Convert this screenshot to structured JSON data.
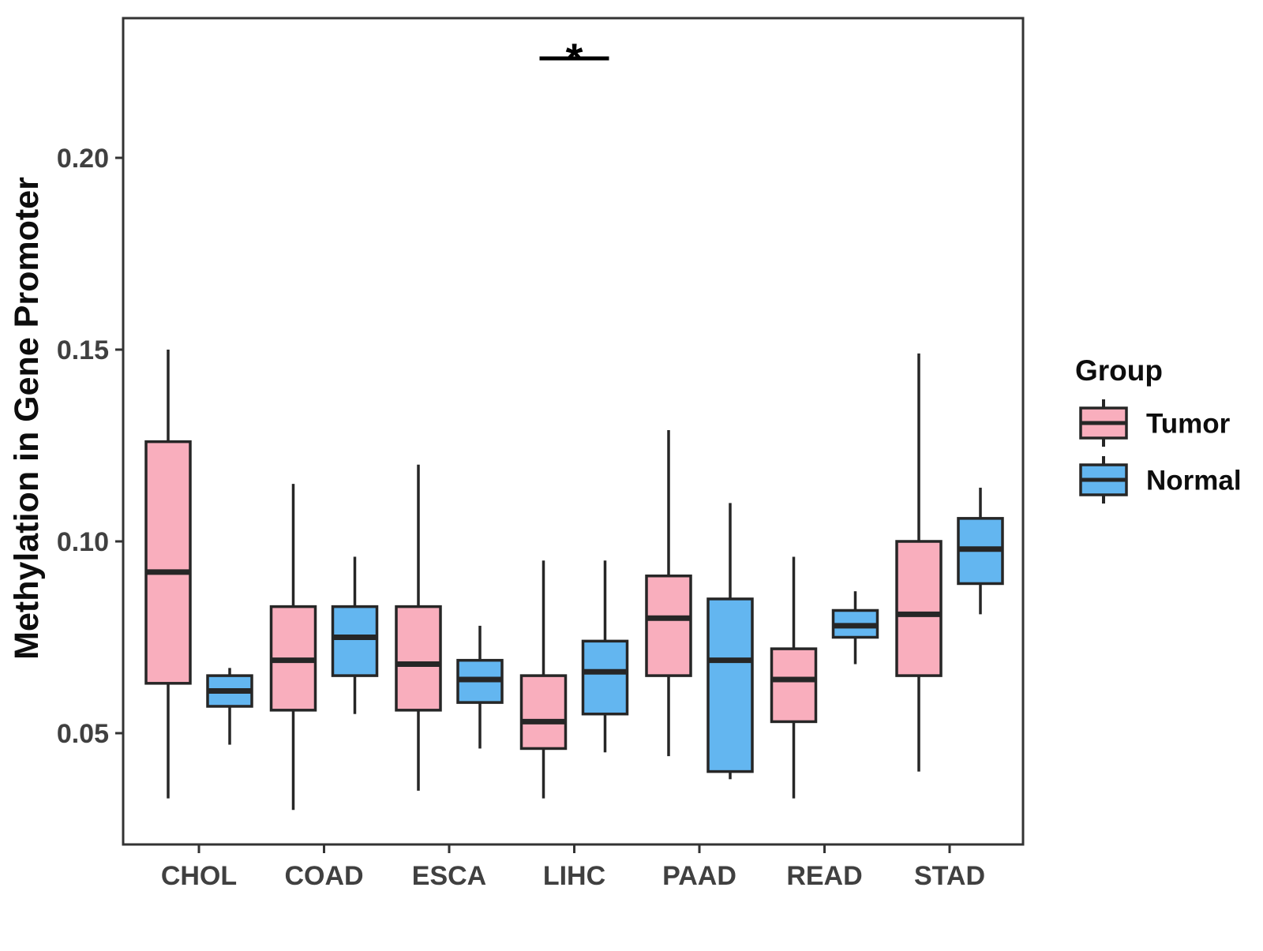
{
  "figure": {
    "y_axis_title": "Methylation in Gene Promoter",
    "y_tick_labels": [
      "0.20",
      "0.15",
      "0.10",
      "0.05"
    ],
    "x_tick_labels": [
      "CHOL",
      "COAD",
      "ESCA",
      "LIHC",
      "PAAD",
      "READ",
      "STAD"
    ],
    "legend_title": "Group",
    "legend_items": [
      "Tumor",
      "Normal"
    ],
    "significance_label": "*",
    "colors": {
      "tumor_fill": "#F9AEBD",
      "normal_fill": "#63B6F0",
      "box_stroke": "#262626",
      "panel_stroke": "#333333",
      "tick_label": "#404040",
      "title_text": "#0d0d0d"
    }
  },
  "chart_data": {
    "type": "boxplot",
    "title": "",
    "xlabel": "",
    "ylabel": "Methylation in Gene Promoter",
    "categories": [
      "CHOL",
      "COAD",
      "ESCA",
      "LIHC",
      "PAAD",
      "READ",
      "STAD"
    ],
    "yticks": [
      0.2,
      0.15,
      0.1,
      0.05
    ],
    "ytick_labels": [
      "0.20",
      "0.15",
      "0.10",
      "0.05"
    ],
    "ylim": [
      0.021,
      0.236
    ],
    "grid": false,
    "legend_position": "right",
    "legend_title": "Group",
    "series": [
      {
        "name": "Tumor",
        "color": "#F9AEBD",
        "boxes": [
          {
            "category": "CHOL",
            "min": 0.033,
            "q1": 0.063,
            "median": 0.092,
            "q3": 0.126,
            "max": 0.15
          },
          {
            "category": "COAD",
            "min": 0.03,
            "q1": 0.056,
            "median": 0.069,
            "q3": 0.083,
            "max": 0.115
          },
          {
            "category": "ESCA",
            "min": 0.035,
            "q1": 0.056,
            "median": 0.068,
            "q3": 0.083,
            "max": 0.12
          },
          {
            "category": "LIHC",
            "min": 0.033,
            "q1": 0.046,
            "median": 0.053,
            "q3": 0.065,
            "max": 0.095
          },
          {
            "category": "PAAD",
            "min": 0.044,
            "q1": 0.065,
            "median": 0.08,
            "q3": 0.091,
            "max": 0.129
          },
          {
            "category": "READ",
            "min": 0.033,
            "q1": 0.053,
            "median": 0.064,
            "q3": 0.072,
            "max": 0.096
          },
          {
            "category": "STAD",
            "min": 0.04,
            "q1": 0.065,
            "median": 0.081,
            "q3": 0.1,
            "max": 0.149
          }
        ]
      },
      {
        "name": "Normal",
        "color": "#63B6F0",
        "boxes": [
          {
            "category": "CHOL",
            "min": 0.047,
            "q1": 0.057,
            "median": 0.061,
            "q3": 0.065,
            "max": 0.067
          },
          {
            "category": "COAD",
            "min": 0.055,
            "q1": 0.065,
            "median": 0.075,
            "q3": 0.083,
            "max": 0.096
          },
          {
            "category": "ESCA",
            "min": 0.046,
            "q1": 0.058,
            "median": 0.064,
            "q3": 0.069,
            "max": 0.078
          },
          {
            "category": "LIHC",
            "min": 0.045,
            "q1": 0.055,
            "median": 0.066,
            "q3": 0.074,
            "max": 0.095
          },
          {
            "category": "PAAD",
            "min": 0.038,
            "q1": 0.04,
            "median": 0.069,
            "q3": 0.085,
            "max": 0.11
          },
          {
            "category": "READ",
            "min": 0.068,
            "q1": 0.075,
            "median": 0.078,
            "q3": 0.082,
            "max": 0.087
          },
          {
            "category": "STAD",
            "min": 0.081,
            "q1": 0.089,
            "median": 0.098,
            "q3": 0.106,
            "max": 0.114
          }
        ]
      }
    ],
    "significance_markers": [
      {
        "category": "LIHC",
        "label": "*"
      }
    ]
  }
}
